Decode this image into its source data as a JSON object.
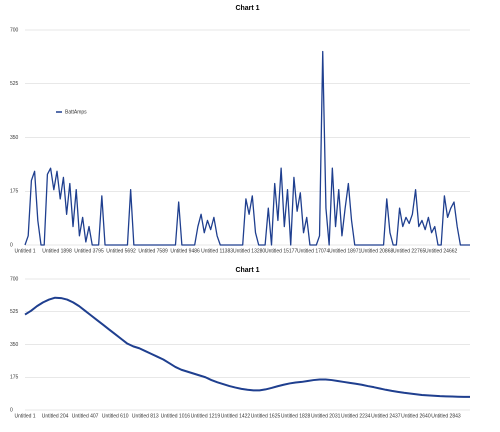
{
  "chart_data": [
    {
      "type": "line",
      "title": "Chart 1",
      "categories": [
        "Untitled 1",
        null,
        null,
        null,
        null,
        null,
        null,
        null,
        null,
        null,
        "Untitled 1898",
        null,
        null,
        null,
        null,
        null,
        null,
        null,
        null,
        null,
        "Untitled 3795",
        null,
        null,
        null,
        null,
        null,
        null,
        null,
        null,
        null,
        "Untitled 5692",
        null,
        null,
        null,
        null,
        null,
        null,
        null,
        null,
        null,
        "Untitled 7589",
        null,
        null,
        null,
        null,
        null,
        null,
        null,
        null,
        null,
        "Untitled 9486",
        null,
        null,
        null,
        null,
        null,
        null,
        null,
        null,
        null,
        "Untitled 11383",
        null,
        null,
        null,
        null,
        null,
        null,
        null,
        null,
        null,
        "Untitled 13280",
        null,
        null,
        null,
        null,
        null,
        null,
        null,
        null,
        null,
        "Untitled 15177",
        null,
        null,
        null,
        null,
        null,
        null,
        null,
        null,
        null,
        "Untitled 17074",
        null,
        null,
        null,
        null,
        null,
        null,
        null,
        null,
        null,
        "Untitled 18971",
        null,
        null,
        null,
        null,
        null,
        null,
        null,
        null,
        null,
        "Untitled 20868",
        null,
        null,
        null,
        null,
        null,
        null,
        null,
        null,
        null,
        "Untitled 22765",
        null,
        null,
        null,
        null,
        null,
        null,
        null,
        null,
        null,
        "Untitled 24662",
        null,
        null,
        null,
        null,
        null,
        null,
        null,
        null,
        null
      ],
      "series": [
        {
          "name": "BattAmps",
          "color": "#1f3f8f",
          "values": [
            0,
            30,
            210,
            240,
            80,
            0,
            0,
            230,
            250,
            180,
            240,
            150,
            220,
            100,
            200,
            60,
            180,
            30,
            90,
            10,
            60,
            0,
            0,
            0,
            160,
            0,
            0,
            0,
            0,
            0,
            0,
            0,
            0,
            180,
            0,
            0,
            0,
            0,
            0,
            0,
            0,
            0,
            0,
            0,
            0,
            0,
            0,
            0,
            140,
            0,
            0,
            0,
            0,
            0,
            60,
            100,
            40,
            80,
            50,
            90,
            30,
            0,
            0,
            0,
            0,
            0,
            0,
            0,
            0,
            150,
            100,
            160,
            40,
            0,
            0,
            0,
            120,
            0,
            200,
            80,
            250,
            60,
            180,
            0,
            220,
            110,
            170,
            40,
            90,
            0,
            0,
            0,
            30,
            630,
            120,
            0,
            250,
            60,
            180,
            30,
            120,
            200,
            80,
            0,
            0,
            0,
            0,
            0,
            0,
            0,
            0,
            0,
            0,
            150,
            40,
            0,
            0,
            120,
            60,
            90,
            70,
            100,
            180,
            60,
            80,
            50,
            90,
            40,
            60,
            0,
            0,
            160,
            90,
            120,
            140,
            60,
            0,
            0,
            0,
            0
          ]
        }
      ],
      "ylim": [
        0,
        700
      ],
      "yticks": [
        0,
        175,
        350,
        525,
        700
      ],
      "grid": true,
      "legend": "left"
    },
    {
      "type": "line",
      "title": "Chart 1",
      "categories": [
        "Untitled 1",
        null,
        null,
        null,
        null,
        "Untitled 204",
        null,
        null,
        null,
        null,
        "Untitled 407",
        null,
        null,
        null,
        null,
        "Untitled 610",
        null,
        null,
        null,
        null,
        "Untitled 813",
        null,
        null,
        null,
        null,
        "Untitled 1016",
        null,
        null,
        null,
        null,
        "Untitled 1219",
        null,
        null,
        null,
        null,
        "Untitled 1422",
        null,
        null,
        null,
        null,
        "Untitled 1625",
        null,
        null,
        null,
        null,
        "Untitled 1828",
        null,
        null,
        null,
        null,
        "Untitled 2031",
        null,
        null,
        null,
        null,
        "Untitled 2234",
        null,
        null,
        null,
        null,
        "Untitled 2437",
        null,
        null,
        null,
        null,
        "Untitled 2640",
        null,
        null,
        null,
        null,
        "Untitled 2843",
        null,
        null,
        null,
        null
      ],
      "color": "#1f3f8f",
      "values": [
        510,
        530,
        555,
        575,
        590,
        600,
        598,
        590,
        575,
        555,
        530,
        505,
        480,
        455,
        430,
        405,
        380,
        355,
        340,
        330,
        315,
        300,
        285,
        270,
        250,
        230,
        215,
        205,
        195,
        185,
        175,
        160,
        148,
        138,
        128,
        120,
        113,
        108,
        105,
        105,
        110,
        118,
        127,
        135,
        142,
        147,
        150,
        155,
        160,
        163,
        163,
        160,
        155,
        150,
        145,
        140,
        135,
        128,
        122,
        115,
        108,
        102,
        97,
        92,
        88,
        84,
        80,
        78,
        76,
        74,
        73,
        72,
        71,
        70,
        70
      ],
      "ylim": [
        0,
        700
      ],
      "yticks": [
        0,
        175,
        350,
        525,
        700
      ],
      "grid": true
    }
  ]
}
